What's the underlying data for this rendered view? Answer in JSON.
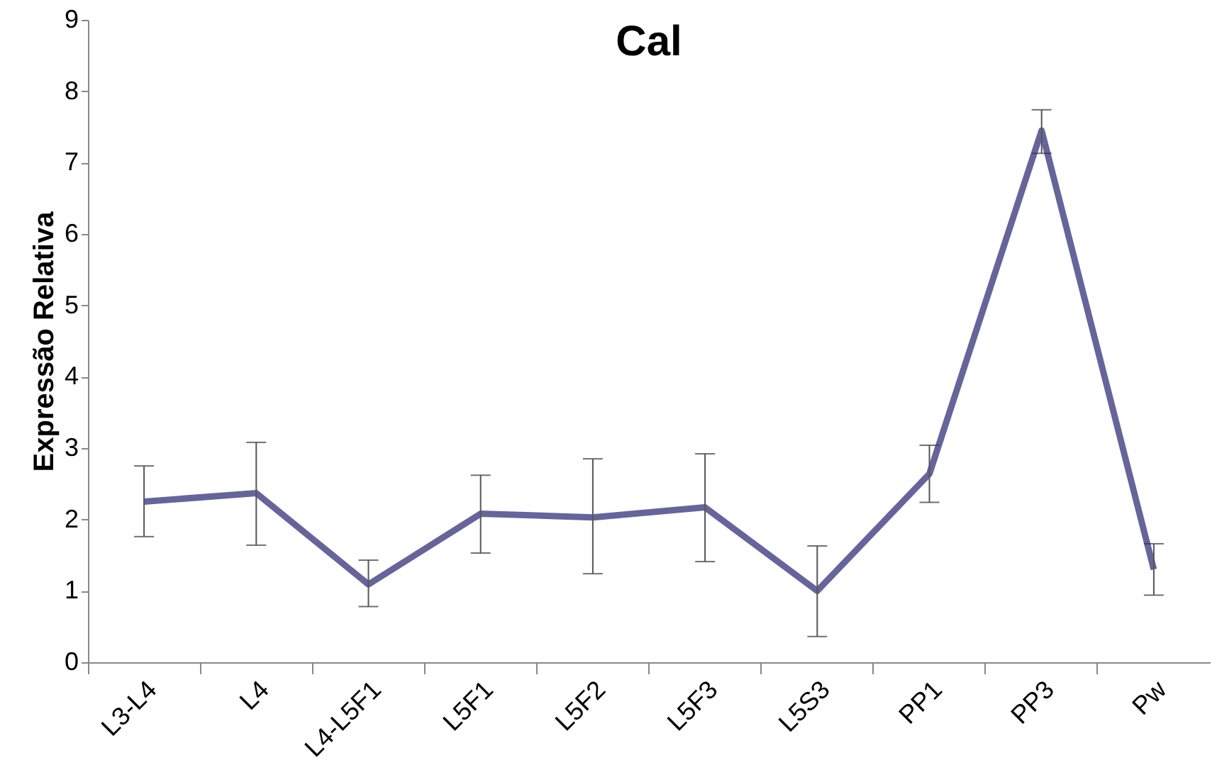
{
  "chart_data": {
    "type": "line",
    "title": "Cal",
    "ylabel": "Expressão Relativa",
    "categories": [
      "L3-L4",
      "L4",
      "L4-L5F1",
      "L5F1",
      "L5F2",
      "L5F3",
      "L5S3",
      "PP1",
      "PP3",
      "Pw"
    ],
    "series": [
      {
        "color": "#65659b",
        "values": [
          2.25,
          2.37,
          1.09,
          2.08,
          2.03,
          2.17,
          1.0,
          2.64,
          7.45,
          1.3
        ],
        "errors": [
          [
            1.76,
            2.75
          ],
          [
            1.64,
            3.08
          ],
          [
            0.78,
            1.43
          ],
          [
            1.53,
            2.62
          ],
          [
            1.24,
            2.85
          ],
          [
            1.41,
            2.92
          ],
          [
            0.36,
            1.63
          ],
          [
            2.24,
            3.04
          ],
          [
            7.13,
            7.74
          ],
          [
            0.94,
            1.66
          ]
        ]
      }
    ],
    "ylim": [
      0,
      9
    ],
    "yticks": [
      0,
      1,
      2,
      3,
      4,
      5,
      6,
      7,
      8,
      9
    ],
    "grid": false,
    "marker": "none",
    "line_style": "solid"
  }
}
